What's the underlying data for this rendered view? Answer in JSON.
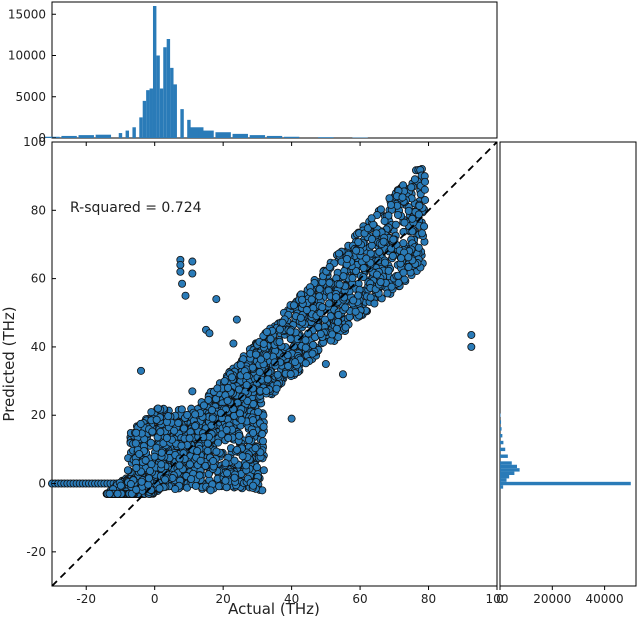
{
  "chart_data": [
    {
      "type": "scatter",
      "panel": "main",
      "xlabel": "Actual (THz)",
      "ylabel": "Predicted (THz)",
      "xlim": [
        -30,
        100
      ],
      "ylim": [
        -30,
        100
      ],
      "xticks": [
        -20,
        0,
        20,
        40,
        60,
        80,
        100
      ],
      "yticks": [
        -20,
        0,
        20,
        40,
        60,
        80,
        100
      ],
      "annotation": "R-squared = 0.724",
      "reference_line": {
        "style": "dashed",
        "color": "#000000",
        "from": [
          -30,
          -30
        ],
        "to": [
          100,
          100
        ]
      },
      "marker_color": "#2a7bb8",
      "marker_edge": "#111111",
      "dense_bands": [
        {
          "x_range": [
            -30,
            28
          ],
          "y": 0
        }
      ],
      "notable_points": [
        {
          "x": 7.5,
          "y": 65.5
        },
        {
          "x": 11,
          "y": 65
        },
        {
          "x": 7.5,
          "y": 64
        },
        {
          "x": 7.5,
          "y": 62
        },
        {
          "x": 11,
          "y": 61.5
        },
        {
          "x": 8,
          "y": 58.5
        },
        {
          "x": 9,
          "y": 55
        },
        {
          "x": 15,
          "y": 45
        },
        {
          "x": 16,
          "y": 44
        },
        {
          "x": 18,
          "y": 54
        },
        {
          "x": 24,
          "y": 48
        },
        {
          "x": 23,
          "y": 41
        },
        {
          "x": -4,
          "y": 33
        },
        {
          "x": 11,
          "y": 27
        },
        {
          "x": 40,
          "y": 19
        },
        {
          "x": 92.5,
          "y": 43.5
        },
        {
          "x": 92.5,
          "y": 40
        },
        {
          "x": 55,
          "y": 32
        },
        {
          "x": 50,
          "y": 35
        },
        {
          "x": 72,
          "y": 66
        },
        {
          "x": 79,
          "y": 83
        },
        {
          "x": 66,
          "y": 59
        }
      ]
    },
    {
      "type": "bar",
      "panel": "top-histogram",
      "xlim": [
        -30,
        100
      ],
      "ylim": [
        0,
        16000
      ],
      "yticks": [
        0,
        5000,
        10000,
        15000
      ],
      "bin_centers": [
        -30,
        -25,
        -20,
        -15,
        -10,
        -8,
        -6,
        -4,
        -3,
        -2,
        -1,
        0,
        1,
        2,
        3,
        4,
        5,
        6,
        8,
        10,
        12,
        15,
        20,
        25,
        30,
        35,
        40,
        50,
        60
      ],
      "values": [
        150,
        250,
        350,
        400,
        600,
        900,
        1300,
        2500,
        4500,
        5800,
        6000,
        16000,
        10000,
        6000,
        11000,
        12000,
        8500,
        6500,
        3500,
        2200,
        1300,
        900,
        700,
        500,
        350,
        250,
        150,
        100,
        50
      ],
      "color": "#2a7bb8"
    },
    {
      "type": "bar",
      "orientation": "horizontal",
      "panel": "right-histogram",
      "xlim": [
        0,
        52000
      ],
      "xticks": [
        0,
        20000,
        40000
      ],
      "xtick_labels": [
        "0",
        "20000",
        "40000"
      ],
      "bin_centers": [
        -1,
        0,
        1,
        2,
        3,
        4,
        5,
        6,
        8,
        10,
        12,
        14,
        16,
        18,
        20
      ],
      "values": [
        1200,
        50000,
        2500,
        3500,
        5500,
        7500,
        6500,
        4500,
        3000,
        2000,
        1300,
        900,
        600,
        400,
        200
      ],
      "color": "#2a7bb8"
    }
  ]
}
